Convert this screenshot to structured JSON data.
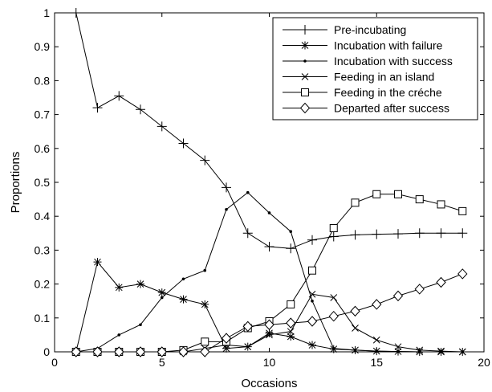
{
  "chart_data": {
    "type": "line",
    "title": "",
    "xlabel": "Occasions",
    "ylabel": "Proportions",
    "xlim": [
      0,
      20
    ],
    "ylim": [
      0,
      1
    ],
    "xticks": [
      "0",
      "5",
      "10",
      "15",
      "20"
    ],
    "yticks": [
      "0",
      "0.1",
      "0.2",
      "0.3",
      "0.4",
      "0.5",
      "0.6",
      "0.7",
      "0.8",
      "0.9",
      "1"
    ],
    "grid": false,
    "legend_position": "top-right",
    "x": [
      1,
      2,
      3,
      4,
      5,
      6,
      7,
      8,
      9,
      10,
      11,
      12,
      13,
      14,
      15,
      16,
      17,
      18,
      19
    ],
    "series": [
      {
        "name": "Pre-incubating",
        "marker": "plus",
        "values": [
          1.0,
          0.72,
          0.755,
          0.715,
          0.665,
          0.615,
          0.565,
          0.485,
          0.35,
          0.31,
          0.305,
          0.33,
          0.34,
          0.345,
          0.347,
          0.348,
          0.35,
          0.35,
          0.35
        ]
      },
      {
        "name": "Incubation with failure",
        "marker": "asterisk",
        "values": [
          0.0,
          0.265,
          0.19,
          0.2,
          0.175,
          0.155,
          0.14,
          0.01,
          0.015,
          0.055,
          0.045,
          0.02,
          0.008,
          0.005,
          0.002,
          0.001,
          0.0,
          0.0,
          0.0
        ]
      },
      {
        "name": "Incubation with success",
        "marker": "dot",
        "values": [
          0.0,
          0.01,
          0.05,
          0.08,
          0.16,
          0.215,
          0.24,
          0.42,
          0.47,
          0.41,
          0.355,
          0.15,
          0.01,
          0.005,
          0.002,
          0.001,
          0.0,
          0.0,
          0.0
        ]
      },
      {
        "name": "Feeding in an island",
        "marker": "x",
        "values": [
          0.0,
          0.0,
          0.0,
          0.0,
          0.0,
          0.0,
          0.01,
          0.02,
          0.015,
          0.05,
          0.06,
          0.17,
          0.16,
          0.07,
          0.035,
          0.015,
          0.005,
          0.002,
          0.0
        ]
      },
      {
        "name": "Feeding in the créche",
        "marker": "square",
        "values": [
          0.0,
          0.0,
          0.0,
          0.0,
          0.0,
          0.005,
          0.03,
          0.03,
          0.07,
          0.09,
          0.14,
          0.24,
          0.365,
          0.44,
          0.465,
          0.465,
          0.45,
          0.435,
          0.415
        ]
      },
      {
        "name": "Departed after success",
        "marker": "diamond",
        "values": [
          0.0,
          0.0,
          0.0,
          0.0,
          0.0,
          0.0,
          0.0,
          0.04,
          0.075,
          0.08,
          0.085,
          0.09,
          0.105,
          0.12,
          0.14,
          0.165,
          0.185,
          0.205,
          0.23
        ]
      }
    ]
  }
}
